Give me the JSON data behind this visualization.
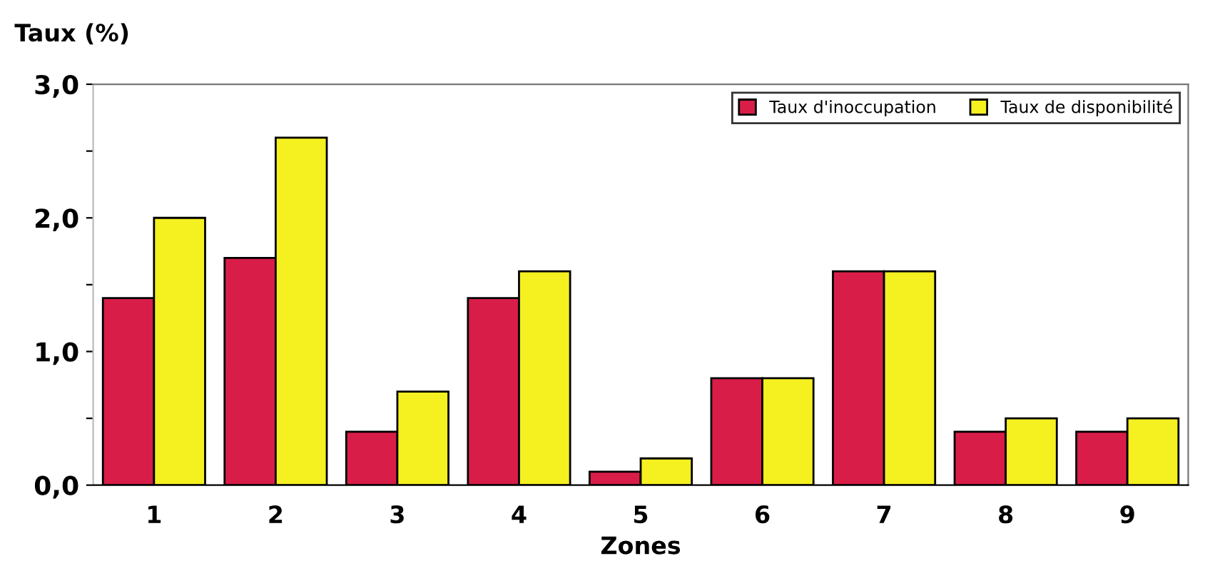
{
  "chart_data": {
    "type": "bar",
    "ylabel": "Taux (%)",
    "xlabel": "Zones",
    "categories": [
      "1",
      "2",
      "3",
      "4",
      "5",
      "6",
      "7",
      "8",
      "9"
    ],
    "series": [
      {
        "name": "Taux d'inoccupation",
        "color": "#d81e48",
        "values": [
          1.4,
          1.7,
          0.4,
          1.4,
          0.1,
          0.8,
          1.6,
          0.4,
          0.4
        ]
      },
      {
        "name": "Taux de disponibilité",
        "color": "#f5f020",
        "values": [
          2.0,
          2.6,
          0.7,
          1.6,
          0.2,
          0.8,
          1.6,
          0.5,
          0.5
        ]
      }
    ],
    "ylim": [
      0,
      3
    ],
    "yticks": [
      {
        "value": 0,
        "label": "0,0"
      },
      {
        "value": 0.5,
        "label": null
      },
      {
        "value": 1,
        "label": "1,0"
      },
      {
        "value": 1.5,
        "label": null
      },
      {
        "value": 2,
        "label": "2,0"
      },
      {
        "value": 2.5,
        "label": null
      },
      {
        "value": 3,
        "label": "3,0"
      }
    ],
    "grid": false,
    "legend": "top right"
  }
}
